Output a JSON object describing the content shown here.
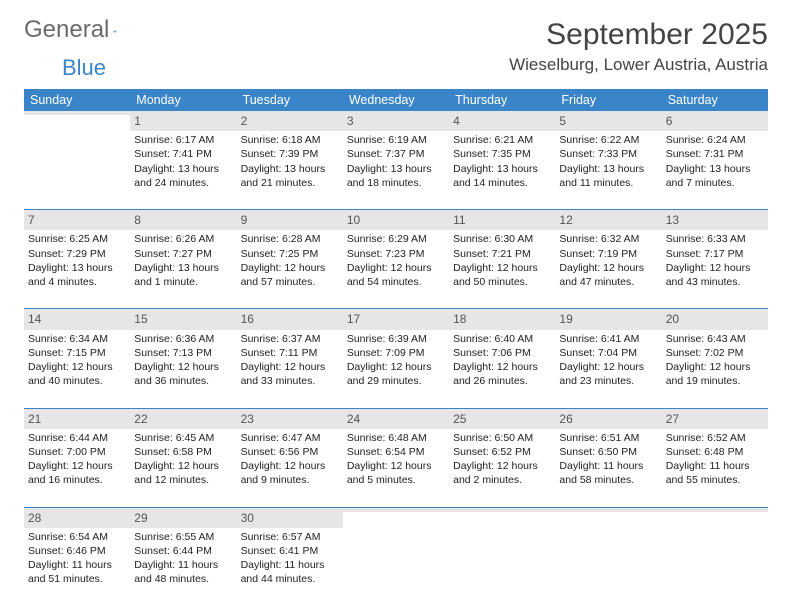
{
  "logo": {
    "part1": "General",
    "part2": "Blue"
  },
  "title": "September 2025",
  "location": "Wieselburg, Lower Austria, Austria",
  "headers": [
    "Sunday",
    "Monday",
    "Tuesday",
    "Wednesday",
    "Thursday",
    "Friday",
    "Saturday"
  ],
  "colors": {
    "header_bg": "#3a85c9",
    "header_fg": "#ffffff",
    "daynum_bg": "#e6e6e6",
    "row_sep": "#3a85c9",
    "logo_gray": "#6b6b6b",
    "logo_blue": "#3a85c9"
  },
  "weeks": [
    [
      null,
      {
        "n": "1",
        "sr": "6:17 AM",
        "ss": "7:41 PM",
        "dl": "13 hours and 24 minutes."
      },
      {
        "n": "2",
        "sr": "6:18 AM",
        "ss": "7:39 PM",
        "dl": "13 hours and 21 minutes."
      },
      {
        "n": "3",
        "sr": "6:19 AM",
        "ss": "7:37 PM",
        "dl": "13 hours and 18 minutes."
      },
      {
        "n": "4",
        "sr": "6:21 AM",
        "ss": "7:35 PM",
        "dl": "13 hours and 14 minutes."
      },
      {
        "n": "5",
        "sr": "6:22 AM",
        "ss": "7:33 PM",
        "dl": "13 hours and 11 minutes."
      },
      {
        "n": "6",
        "sr": "6:24 AM",
        "ss": "7:31 PM",
        "dl": "13 hours and 7 minutes."
      }
    ],
    [
      {
        "n": "7",
        "sr": "6:25 AM",
        "ss": "7:29 PM",
        "dl": "13 hours and 4 minutes."
      },
      {
        "n": "8",
        "sr": "6:26 AM",
        "ss": "7:27 PM",
        "dl": "13 hours and 1 minute."
      },
      {
        "n": "9",
        "sr": "6:28 AM",
        "ss": "7:25 PM",
        "dl": "12 hours and 57 minutes."
      },
      {
        "n": "10",
        "sr": "6:29 AM",
        "ss": "7:23 PM",
        "dl": "12 hours and 54 minutes."
      },
      {
        "n": "11",
        "sr": "6:30 AM",
        "ss": "7:21 PM",
        "dl": "12 hours and 50 minutes."
      },
      {
        "n": "12",
        "sr": "6:32 AM",
        "ss": "7:19 PM",
        "dl": "12 hours and 47 minutes."
      },
      {
        "n": "13",
        "sr": "6:33 AM",
        "ss": "7:17 PM",
        "dl": "12 hours and 43 minutes."
      }
    ],
    [
      {
        "n": "14",
        "sr": "6:34 AM",
        "ss": "7:15 PM",
        "dl": "12 hours and 40 minutes."
      },
      {
        "n": "15",
        "sr": "6:36 AM",
        "ss": "7:13 PM",
        "dl": "12 hours and 36 minutes."
      },
      {
        "n": "16",
        "sr": "6:37 AM",
        "ss": "7:11 PM",
        "dl": "12 hours and 33 minutes."
      },
      {
        "n": "17",
        "sr": "6:39 AM",
        "ss": "7:09 PM",
        "dl": "12 hours and 29 minutes."
      },
      {
        "n": "18",
        "sr": "6:40 AM",
        "ss": "7:06 PM",
        "dl": "12 hours and 26 minutes."
      },
      {
        "n": "19",
        "sr": "6:41 AM",
        "ss": "7:04 PM",
        "dl": "12 hours and 23 minutes."
      },
      {
        "n": "20",
        "sr": "6:43 AM",
        "ss": "7:02 PM",
        "dl": "12 hours and 19 minutes."
      }
    ],
    [
      {
        "n": "21",
        "sr": "6:44 AM",
        "ss": "7:00 PM",
        "dl": "12 hours and 16 minutes."
      },
      {
        "n": "22",
        "sr": "6:45 AM",
        "ss": "6:58 PM",
        "dl": "12 hours and 12 minutes."
      },
      {
        "n": "23",
        "sr": "6:47 AM",
        "ss": "6:56 PM",
        "dl": "12 hours and 9 minutes."
      },
      {
        "n": "24",
        "sr": "6:48 AM",
        "ss": "6:54 PM",
        "dl": "12 hours and 5 minutes."
      },
      {
        "n": "25",
        "sr": "6:50 AM",
        "ss": "6:52 PM",
        "dl": "12 hours and 2 minutes."
      },
      {
        "n": "26",
        "sr": "6:51 AM",
        "ss": "6:50 PM",
        "dl": "11 hours and 58 minutes."
      },
      {
        "n": "27",
        "sr": "6:52 AM",
        "ss": "6:48 PM",
        "dl": "11 hours and 55 minutes."
      }
    ],
    [
      {
        "n": "28",
        "sr": "6:54 AM",
        "ss": "6:46 PM",
        "dl": "11 hours and 51 minutes."
      },
      {
        "n": "29",
        "sr": "6:55 AM",
        "ss": "6:44 PM",
        "dl": "11 hours and 48 minutes."
      },
      {
        "n": "30",
        "sr": "6:57 AM",
        "ss": "6:41 PM",
        "dl": "11 hours and 44 minutes."
      },
      null,
      null,
      null,
      null
    ]
  ],
  "labels": {
    "sunrise": "Sunrise:",
    "sunset": "Sunset:",
    "daylight": "Daylight:"
  }
}
